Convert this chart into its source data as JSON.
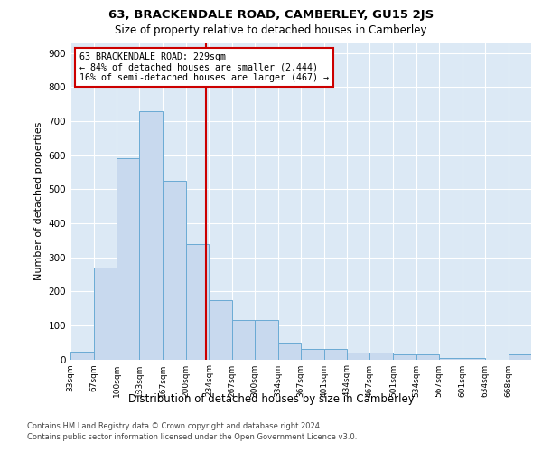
{
  "title": "63, BRACKENDALE ROAD, CAMBERLEY, GU15 2JS",
  "subtitle": "Size of property relative to detached houses in Camberley",
  "xlabel": "Distribution of detached houses by size in Camberley",
  "ylabel": "Number of detached properties",
  "bar_color": "#c8d9ee",
  "bar_edge_color": "#6aaad4",
  "background_color": "#dce9f5",
  "grid_color": "#ffffff",
  "vline_value": 229,
  "vline_color": "#cc0000",
  "annotation_text": "63 BRACKENDALE ROAD: 229sqm\n← 84% of detached houses are smaller (2,444)\n16% of semi-detached houses are larger (467) →",
  "annotation_box_color": "#cc0000",
  "bin_edges": [
    33,
    67,
    100,
    133,
    167,
    200,
    234,
    267,
    300,
    334,
    367,
    401,
    434,
    467,
    501,
    534,
    567,
    601,
    634,
    668,
    701
  ],
  "bar_heights": [
    22,
    270,
    590,
    730,
    525,
    340,
    175,
    115,
    115,
    50,
    30,
    30,
    20,
    20,
    15,
    15,
    5,
    5,
    0,
    15
  ],
  "ylim": [
    0,
    930
  ],
  "yticks": [
    0,
    100,
    200,
    300,
    400,
    500,
    600,
    700,
    800,
    900
  ],
  "footnote1": "Contains HM Land Registry data © Crown copyright and database right 2024.",
  "footnote2": "Contains public sector information licensed under the Open Government Licence v3.0."
}
